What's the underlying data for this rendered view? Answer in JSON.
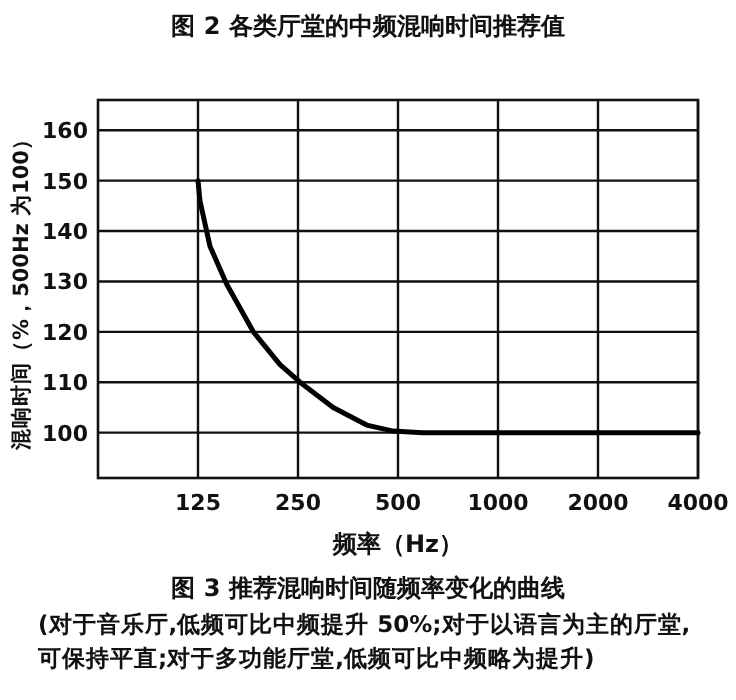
{
  "chart_data": {
    "type": "line",
    "title": "图 3  推荐混响时间随频率变化的曲线",
    "subtitle": "(对于音乐厅,低频可比中频提升 50%;对于以语言为主的厅堂,可保持平直;对于多功能厅堂,低频可比中频略为提升)",
    "annotations": [
      "图 2  各类厅堂的中频混响时间推荐值"
    ],
    "xlabel": "频率（Hz）",
    "ylabel": "混响时间（%，500Hz 为100）",
    "x": [
      125,
      126.7,
      135.8,
      152.4,
      183.4,
      220.7,
      253.5,
      319,
      402.5,
      484,
      592,
      1000,
      2000,
      4000
    ],
    "series": [
      {
        "color": "#000000",
        "values": [
          150,
          146,
          137,
          129.5,
          120,
          113.5,
          110,
          105,
          101.5,
          100.3,
          100,
          100,
          100,
          100
        ]
      }
    ],
    "log": "x",
    "xlim": [
      62.5,
      4000
    ],
    "xticks": [
      125,
      250,
      500,
      1000,
      2000,
      4000
    ],
    "ylim": [
      91,
      166
    ],
    "yticks": [
      100,
      110,
      120,
      130,
      140,
      150,
      160
    ],
    "grid": true,
    "marker": "none",
    "line_style": "solid"
  }
}
